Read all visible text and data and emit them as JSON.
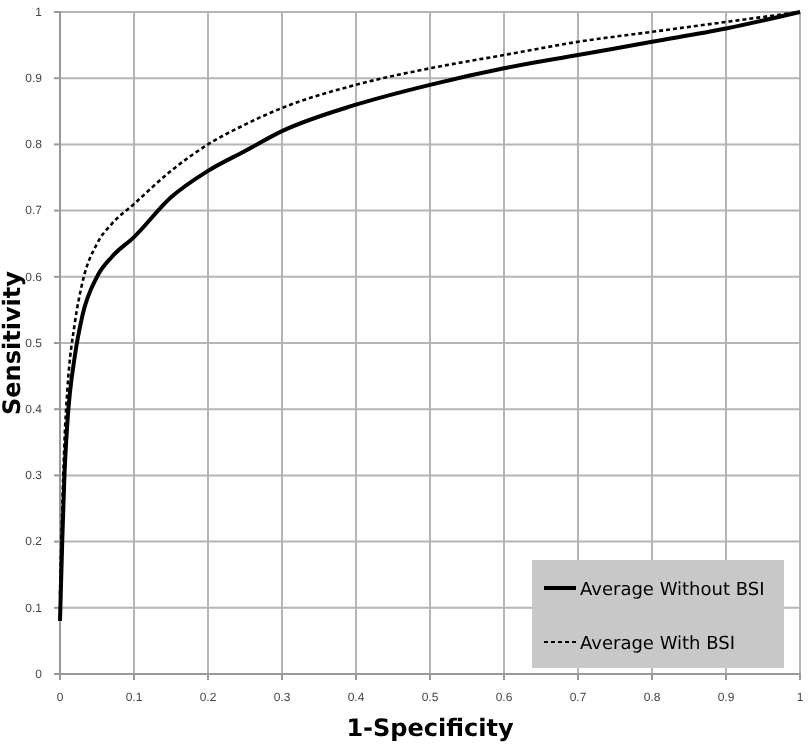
{
  "chart_data": {
    "type": "line",
    "xlabel": "1-Specificity",
    "ylabel": "Sensitivity",
    "xlim": [
      0,
      1
    ],
    "ylim": [
      0,
      1
    ],
    "xticks": [
      0,
      0.1,
      0.2,
      0.3,
      0.4,
      0.5,
      0.6,
      0.7,
      0.8,
      0.9,
      1
    ],
    "yticks": [
      0,
      0.1,
      0.2,
      0.3,
      0.4,
      0.5,
      0.6,
      0.7,
      0.8,
      0.9,
      1
    ],
    "grid": true,
    "legend": "bottom right",
    "marker": "none",
    "series": [
      {
        "name": "Average Without BSI",
        "color": "#000000",
        "line_style": "solid",
        "x": [
          0,
          0.003,
          0.006,
          0.01,
          0.02,
          0.03,
          0.05,
          0.07,
          0.1,
          0.15,
          0.2,
          0.25,
          0.3,
          0.4,
          0.5,
          0.6,
          0.7,
          0.8,
          0.9,
          1
        ],
        "values": [
          0.08,
          0.2,
          0.3,
          0.38,
          0.48,
          0.54,
          0.6,
          0.63,
          0.66,
          0.72,
          0.76,
          0.79,
          0.82,
          0.86,
          0.89,
          0.915,
          0.935,
          0.955,
          0.975,
          1
        ]
      },
      {
        "name": "Average With BSI",
        "color": "#000000",
        "line_style": "dotted",
        "x": [
          0,
          0.003,
          0.006,
          0.01,
          0.02,
          0.03,
          0.05,
          0.07,
          0.1,
          0.15,
          0.2,
          0.25,
          0.3,
          0.4,
          0.5,
          0.6,
          0.7,
          0.8,
          0.9,
          1
        ],
        "values": [
          0.12,
          0.25,
          0.35,
          0.43,
          0.53,
          0.59,
          0.65,
          0.68,
          0.71,
          0.76,
          0.8,
          0.83,
          0.855,
          0.89,
          0.915,
          0.935,
          0.955,
          0.97,
          0.985,
          1
        ]
      }
    ]
  }
}
